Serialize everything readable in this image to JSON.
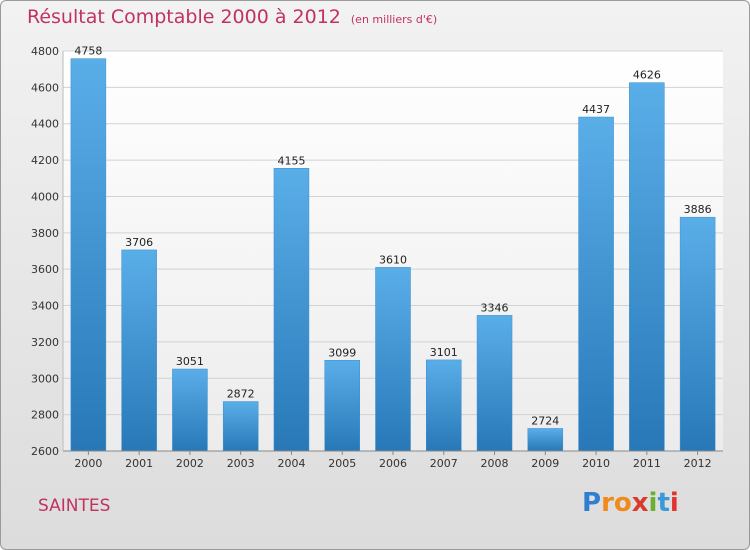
{
  "chart_data": {
    "type": "bar",
    "title": "Résultat Comptable 2000 à 2012",
    "subtitle": "(en milliers d'€)",
    "categories": [
      "2000",
      "2001",
      "2002",
      "2003",
      "2004",
      "2005",
      "2006",
      "2007",
      "2008",
      "2009",
      "2010",
      "2011",
      "2012"
    ],
    "values": [
      4758,
      3706,
      3051,
      2872,
      4155,
      3099,
      3610,
      3101,
      3346,
      2724,
      4437,
      4626,
      3886
    ],
    "ylim": [
      2600,
      4800
    ],
    "yticks": [
      2600,
      2800,
      3000,
      3200,
      3400,
      3600,
      3800,
      4000,
      4200,
      4400,
      4600,
      4800
    ],
    "grid": true,
    "colors": {
      "bar_top": "#5aaee8",
      "bar_bottom": "#2878b8",
      "grid": "#cfd3d6",
      "title": "#c0335f"
    }
  },
  "location": "SAINTES",
  "logo": {
    "letters": [
      "P",
      "r",
      "o",
      "x",
      "i",
      "t",
      "i"
    ],
    "colors": [
      "#2f7fd1",
      "#f08a1c",
      "#f08a1c",
      "#d93a2b",
      "#6ab02e",
      "#3a9ad9",
      "#e0342c"
    ]
  }
}
